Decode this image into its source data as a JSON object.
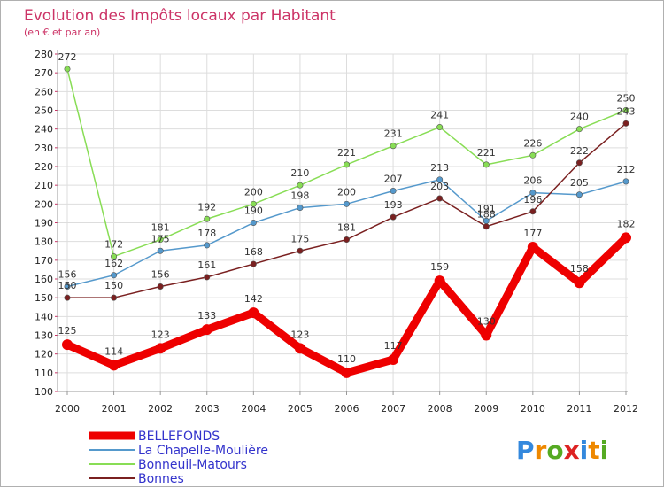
{
  "chart_data": {
    "type": "line",
    "title": "Evolution des Impôts locaux par Habitant",
    "subtitle": "(en € et par an)",
    "title_color": "#cc3366",
    "x": [
      "2000",
      "2001",
      "2002",
      "2003",
      "2004",
      "2005",
      "2006",
      "2007",
      "2008",
      "2009",
      "2010",
      "2011",
      "2012"
    ],
    "ylim": [
      100,
      280
    ],
    "yticks": [
      100,
      110,
      120,
      130,
      140,
      150,
      160,
      170,
      180,
      190,
      200,
      210,
      220,
      230,
      240,
      250,
      260,
      270,
      280
    ],
    "grid": true,
    "series": [
      {
        "name": "BELLEFONDS",
        "color": "#ee0000",
        "thick": true,
        "values": [
          125,
          114,
          123,
          133,
          142,
          123,
          110,
          117,
          159,
          130,
          177,
          158,
          182
        ],
        "labels": [
          "125",
          "114",
          "123",
          "133",
          "142",
          "123",
          "110",
          "117",
          "159",
          "130",
          "177",
          "158",
          "182"
        ]
      },
      {
        "name": "La Chapelle-Moulière",
        "color": "#5599cc",
        "thick": false,
        "values": [
          156,
          162,
          175,
          178,
          190,
          198,
          200,
          207,
          213,
          191,
          206,
          205,
          212
        ],
        "labels": [
          "156",
          "162",
          "175",
          "178",
          "190",
          "198",
          "200",
          "207",
          "213",
          "191",
          "206",
          "205",
          "212"
        ]
      },
      {
        "name": "Bonneuil-Matours",
        "color": "#88dd55",
        "thick": false,
        "values": [
          272,
          172,
          181,
          192,
          200,
          210,
          221,
          231,
          241,
          221,
          226,
          240,
          250
        ],
        "labels": [
          "272",
          "172",
          "181",
          "192",
          "200",
          "210",
          "221",
          "231",
          "241",
          "221",
          "226",
          "240",
          "250"
        ]
      },
      {
        "name": "Bonnes",
        "color": "#7a2020",
        "thick": false,
        "values": [
          150,
          150,
          156,
          161,
          168,
          175,
          181,
          193,
          203,
          188,
          196,
          222,
          243
        ],
        "labels": [
          "150",
          "150",
          "156",
          "161",
          "168",
          "175",
          "181",
          "193",
          "203",
          "188",
          "196",
          "222",
          "243"
        ]
      }
    ],
    "legend_position": "bottom-left",
    "legend_text_color": "#3333cc",
    "brand": "Proxiti",
    "brand_colors": [
      "#3388dd",
      "#ee8800",
      "#55aa22",
      "#dd2222",
      "#3388dd",
      "#ee8800",
      "#55aa22"
    ]
  }
}
